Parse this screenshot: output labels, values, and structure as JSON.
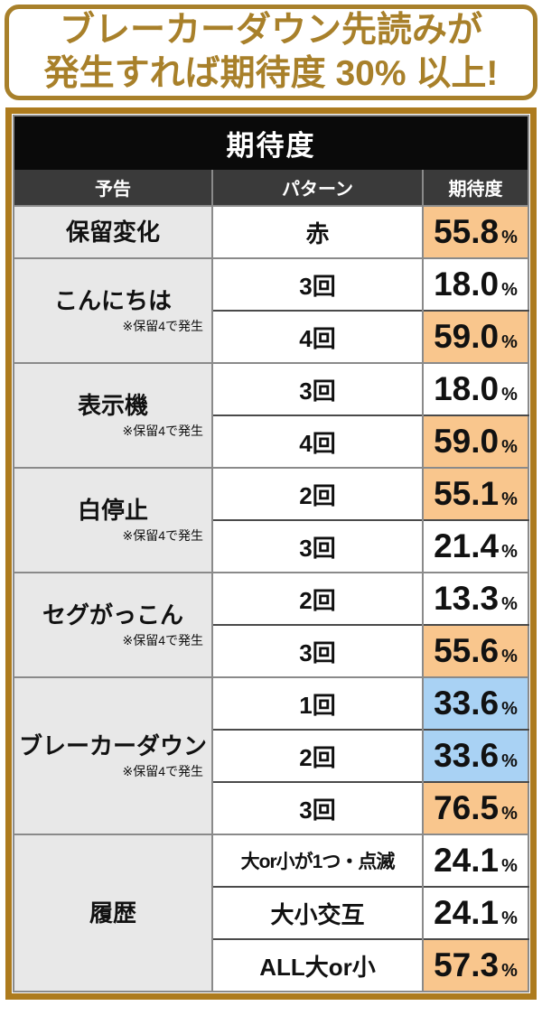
{
  "banner": {
    "line1": "ブレーカーダウン先読みが",
    "line2": "発生すれば期待度 30% 以上!"
  },
  "table": {
    "title": "期待度",
    "columns": [
      "予告",
      "パターン",
      "期待度"
    ],
    "percent_sign": "%",
    "groups": [
      {
        "label": "保留変化",
        "rows": [
          {
            "pattern": "赤",
            "value": "55.8",
            "highlight": "orange"
          }
        ]
      },
      {
        "label": "こんにちは",
        "note": "※保留4で発生",
        "rows": [
          {
            "pattern": "3回",
            "value": "18.0",
            "highlight": "none"
          },
          {
            "pattern": "4回",
            "value": "59.0",
            "highlight": "orange"
          }
        ]
      },
      {
        "label": "表示機",
        "note": "※保留4で発生",
        "rows": [
          {
            "pattern": "3回",
            "value": "18.0",
            "highlight": "none"
          },
          {
            "pattern": "4回",
            "value": "59.0",
            "highlight": "orange"
          }
        ]
      },
      {
        "label": "白停止",
        "note": "※保留4で発生",
        "rows": [
          {
            "pattern": "2回",
            "value": "55.1",
            "highlight": "orange"
          },
          {
            "pattern": "3回",
            "value": "21.4",
            "highlight": "none"
          }
        ]
      },
      {
        "label": "セグがっこん",
        "note": "※保留4で発生",
        "rows": [
          {
            "pattern": "2回",
            "value": "13.3",
            "highlight": "none"
          },
          {
            "pattern": "3回",
            "value": "55.6",
            "highlight": "orange"
          }
        ]
      },
      {
        "label": "ブレーカーダウン",
        "note": "※保留4で発生",
        "rows": [
          {
            "pattern": "1回",
            "value": "33.6",
            "highlight": "blue"
          },
          {
            "pattern": "2回",
            "value": "33.6",
            "highlight": "blue"
          },
          {
            "pattern": "3回",
            "value": "76.5",
            "highlight": "orange"
          }
        ]
      },
      {
        "label": "履歴",
        "rows": [
          {
            "pattern": "大or小が1つ・点滅",
            "value": "24.1",
            "highlight": "none"
          },
          {
            "pattern": "大小交互",
            "value": "24.1",
            "highlight": "none"
          },
          {
            "pattern": "ALL大or小",
            "value": "57.3",
            "highlight": "orange"
          }
        ]
      }
    ]
  },
  "colors": {
    "banner_border": "#a8802a",
    "banner_text": "#a8802a",
    "table_border": "#ad7b1e",
    "header_bg": "#0a0a0a",
    "header_text": "#ffffff",
    "subheader_bg": "#3a3a3a",
    "group_bg": "#e8e8e8",
    "row_bg": "#ffffff",
    "orange": "#f9c68d",
    "blue": "#a9d2f4",
    "border_gray": "#8a8a8a",
    "border_dark": "#4a4a4a",
    "text": "#111111"
  }
}
